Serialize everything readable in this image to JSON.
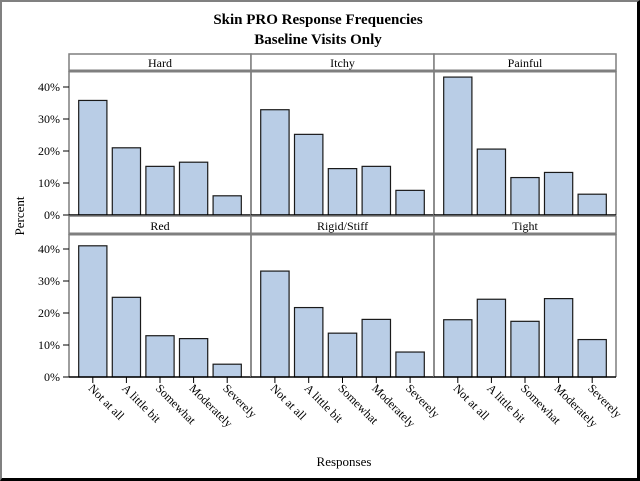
{
  "chart_data": {
    "type": "bar",
    "layout": "panel-grid-2x3",
    "title": "Skin PRO Response Frequencies",
    "subtitle": "Baseline Visits Only",
    "xlabel": "Responses",
    "ylabel": "Percent",
    "ylim": [
      0,
      45
    ],
    "yticks": [
      0,
      10,
      20,
      30,
      40
    ],
    "ytick_labels": [
      "0%",
      "10%",
      "20%",
      "30%",
      "40%"
    ],
    "categories": [
      "Not at all",
      "A little bit",
      "Somewhat",
      "Moderately",
      "Severely"
    ],
    "bar_color": "#b9cde6",
    "grid": false,
    "panels": [
      {
        "name": "Hard",
        "values": [
          35.8,
          21.0,
          15.2,
          16.5,
          6.0
        ]
      },
      {
        "name": "Itchy",
        "values": [
          32.9,
          25.2,
          14.5,
          15.2,
          7.7
        ]
      },
      {
        "name": "Painful",
        "values": [
          43.1,
          20.6,
          11.7,
          13.3,
          6.5
        ]
      },
      {
        "name": "Red",
        "values": [
          41.0,
          24.9,
          12.9,
          12.0,
          4.0
        ]
      },
      {
        "name": "Rigid/Stiff",
        "values": [
          33.1,
          21.7,
          13.7,
          18.0,
          7.8
        ]
      },
      {
        "name": "Tight",
        "values": [
          17.9,
          24.3,
          17.4,
          24.5,
          11.7
        ]
      }
    ]
  }
}
